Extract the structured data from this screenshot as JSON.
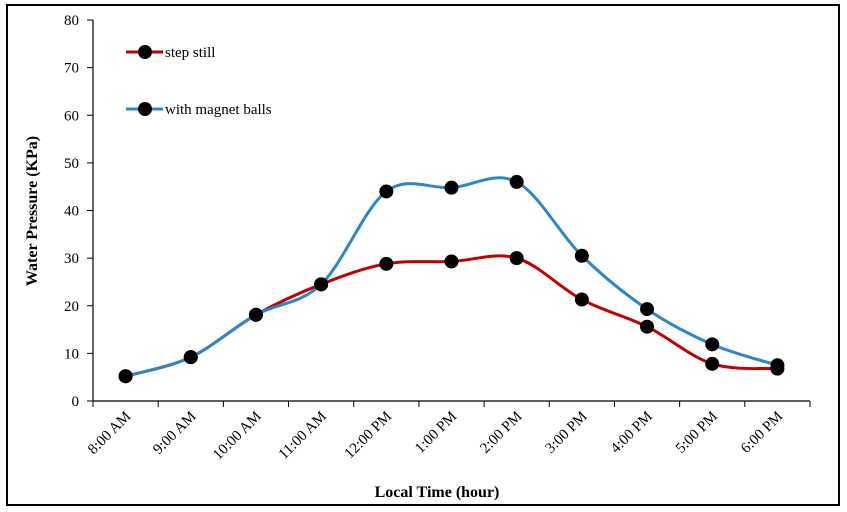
{
  "chart_data": {
    "type": "line",
    "title": "",
    "xlabel": "Local Time (hour)",
    "ylabel": "Water Pressure (KPa)",
    "ylim": [
      0,
      80
    ],
    "yticks": [
      "0",
      "10",
      "20",
      "30",
      "40",
      "50",
      "60",
      "70",
      "80"
    ],
    "categories": [
      "8:00 AM",
      "9:00 AM",
      "10:00 AM",
      "11:00 AM",
      "12:00 PM",
      "1:00 PM",
      "2:00 PM",
      "3:00 PM",
      "4:00 PM",
      "5:00 PM",
      "6:00 PM"
    ],
    "grid": false,
    "legend_position": "top-left",
    "series": [
      {
        "name": "step still",
        "color": "#c00000",
        "values": [
          5.2,
          9.2,
          18.1,
          24.5,
          28.8,
          29.3,
          30.0,
          21.3,
          15.6,
          7.8,
          6.8
        ]
      },
      {
        "name": "with magnet balls",
        "color": "#2e86c9",
        "values": [
          5.2,
          9.2,
          18.1,
          24.5,
          44.0,
          44.8,
          46.0,
          30.5,
          19.3,
          11.9,
          7.5
        ]
      }
    ]
  }
}
